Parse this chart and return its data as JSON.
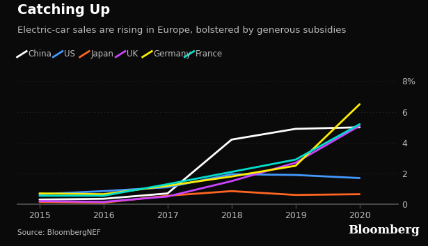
{
  "title": "Catching Up",
  "subtitle": "Electric-car sales are rising in Europe, bolstered by generous subsidies",
  "source": "Source: BloombergNEF",
  "watermark": "Bloomberg",
  "years": [
    2015,
    2016,
    2017,
    2018,
    2019,
    2020
  ],
  "series": {
    "China": {
      "values": [
        0.3,
        0.35,
        0.7,
        4.2,
        4.9,
        5.0
      ],
      "color": "#ffffff",
      "lw": 2.0
    },
    "US": {
      "values": [
        0.65,
        0.85,
        1.1,
        1.95,
        1.9,
        1.7
      ],
      "color": "#4499ff",
      "lw": 2.0
    },
    "Japan": {
      "values": [
        0.15,
        0.1,
        0.55,
        0.85,
        0.6,
        0.65
      ],
      "color": "#ff6622",
      "lw": 2.0
    },
    "UK": {
      "values": [
        0.2,
        0.15,
        0.5,
        1.5,
        2.7,
        5.1
      ],
      "color": "#cc44ff",
      "lw": 2.0
    },
    "Germany": {
      "values": [
        0.7,
        0.65,
        1.2,
        1.8,
        2.5,
        6.5
      ],
      "color": "#ffee00",
      "lw": 2.0
    },
    "France": {
      "values": [
        0.55,
        0.55,
        1.3,
        2.1,
        2.9,
        5.2
      ],
      "color": "#00ddcc",
      "lw": 2.0
    }
  },
  "legend_order": [
    "China",
    "US",
    "Japan",
    "UK",
    "Germany",
    "France"
  ],
  "ylim": [
    0,
    8
  ],
  "yticks": [
    0,
    2,
    4,
    6,
    8
  ],
  "ytick_labels": [
    "0",
    "2",
    "4",
    "6",
    "8%"
  ],
  "bg_color": "#0a0a0a",
  "text_color": "#bbbbbb",
  "grid_color": "#2a2a2a",
  "title_fontsize": 14,
  "subtitle_fontsize": 9.5,
  "legend_fontsize": 8.5,
  "tick_fontsize": 9
}
